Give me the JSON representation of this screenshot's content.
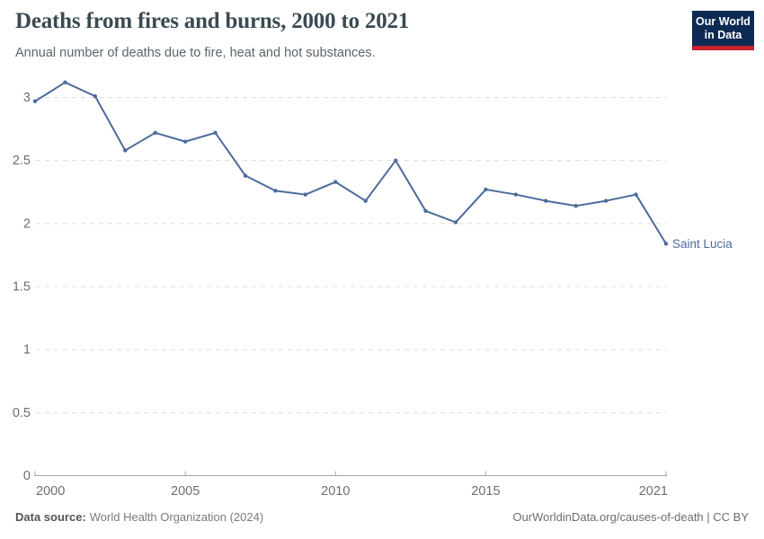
{
  "header": {
    "title": "Deaths from fires and burns, 2000 to 2021",
    "subtitle": "Annual number of deaths due to fire, heat and hot substances."
  },
  "logo": {
    "line1": "Our World",
    "line2": "in Data",
    "bg_color": "#0d2a52",
    "accent_color": "#c5232b"
  },
  "chart_data": {
    "type": "line",
    "title": "Deaths from fires and burns, 2000 to 2021",
    "x": [
      2000,
      2001,
      2002,
      2003,
      2004,
      2005,
      2006,
      2007,
      2008,
      2009,
      2010,
      2011,
      2012,
      2013,
      2014,
      2015,
      2016,
      2017,
      2018,
      2019,
      2020,
      2021
    ],
    "series": [
      {
        "name": "Saint Lucia",
        "color": "#4C6A9C",
        "values": [
          2.97,
          3.12,
          3.01,
          2.58,
          2.72,
          2.65,
          2.72,
          2.38,
          2.26,
          2.23,
          2.33,
          2.18,
          2.5,
          2.1,
          2.01,
          2.27,
          2.23,
          2.18,
          2.14,
          2.18,
          2.23,
          1.84
        ]
      }
    ],
    "xlabel": "",
    "ylabel": "",
    "ylim": [
      0,
      3.2
    ],
    "yticks": [
      0,
      0.5,
      1,
      1.5,
      2,
      2.5,
      3
    ],
    "xticks": [
      2000,
      2005,
      2010,
      2015,
      2021
    ],
    "grid": "horizontal-dashed",
    "legend_position": "end-of-line-label",
    "colors": {
      "grid": "#dcdcdc",
      "axis": "#a5a5a5",
      "tick_label": "#6e6e6e"
    }
  },
  "footer": {
    "source_label": "Data source:",
    "source_value": "World Health Organization (2024)",
    "attribution": "OurWorldinData.org/causes-of-death | CC BY"
  }
}
